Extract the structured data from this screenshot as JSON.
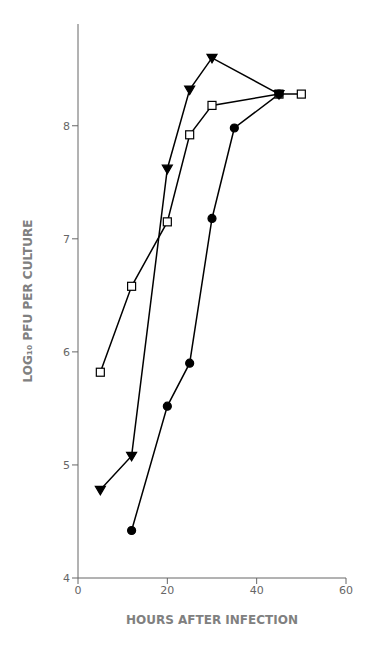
{
  "chart_data": {
    "type": "line",
    "xlabel": "HOURS AFTER INFECTION",
    "ylabel": "LOG₁₀ PFU PER CULTURE",
    "xlim": [
      0,
      60
    ],
    "ylim": [
      4.0,
      8.9
    ],
    "xticks": [
      0,
      20,
      40,
      60
    ],
    "yticks": [
      4,
      5,
      6,
      7,
      8
    ],
    "grid": false,
    "series": [
      {
        "x": [
          5,
          12,
          20,
          25,
          30,
          45,
          50
        ],
        "values": [
          5.82,
          6.58,
          7.15,
          7.92,
          8.18,
          8.28,
          8.28
        ],
        "color": "black",
        "marker": "square_open"
      },
      {
        "x": [
          5,
          12,
          20,
          25,
          30,
          45
        ],
        "values": [
          4.78,
          5.08,
          7.62,
          8.32,
          8.6,
          8.28
        ],
        "color": "black",
        "marker": "triangle_down"
      },
      {
        "x": [
          12,
          20,
          25,
          30,
          35,
          45
        ],
        "values": [
          4.42,
          5.52,
          5.9,
          7.18,
          7.98,
          8.28
        ],
        "color": "black",
        "marker": "circle"
      }
    ]
  }
}
